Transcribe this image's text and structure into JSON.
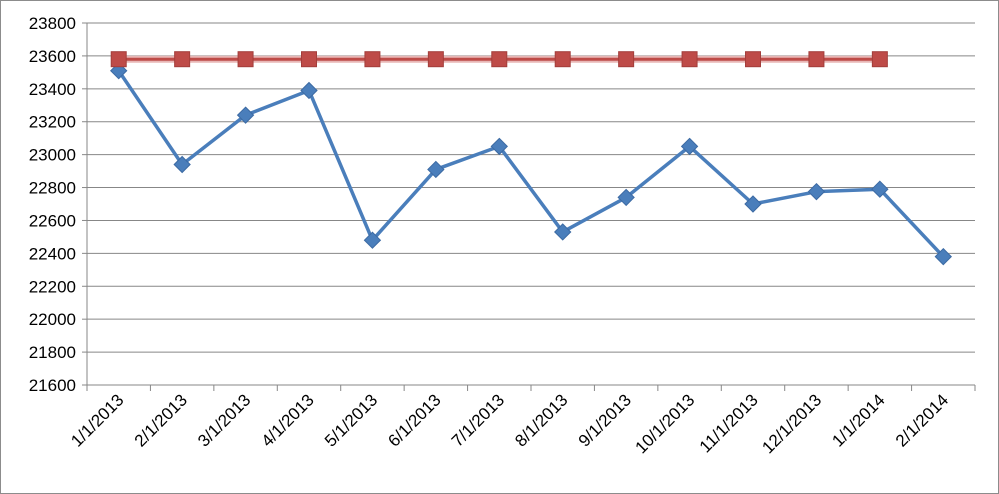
{
  "chart_data": {
    "type": "line",
    "title": "",
    "xlabel": "",
    "ylabel": "",
    "categories": [
      "1/1/2013",
      "2/1/2013",
      "3/1/2013",
      "4/1/2013",
      "5/1/2013",
      "6/1/2013",
      "7/1/2013",
      "8/1/2013",
      "9/1/2013",
      "10/1/2013",
      "11/1/2013",
      "12/1/2013",
      "1/1/2014",
      "2/1/2014"
    ],
    "ylim": [
      21600,
      23800
    ],
    "yticks": [
      21600,
      21800,
      22000,
      22200,
      22400,
      22600,
      22800,
      23000,
      23200,
      23400,
      23600,
      23800
    ],
    "grid": true,
    "legend": "none",
    "series": [
      {
        "values": [
          23510,
          22940,
          23240,
          23390,
          22480,
          22910,
          23050,
          22530,
          22740,
          23050,
          22700,
          22775,
          22790,
          22380
        ],
        "color": "#4a7ebb",
        "marker": "diamond"
      },
      {
        "values": [
          23580,
          23580,
          23580,
          23580,
          23580,
          23580,
          23580,
          23580,
          23580,
          23580,
          23580,
          23580,
          23580,
          null
        ],
        "color": "#be4b48",
        "marker": "square"
      }
    ]
  }
}
